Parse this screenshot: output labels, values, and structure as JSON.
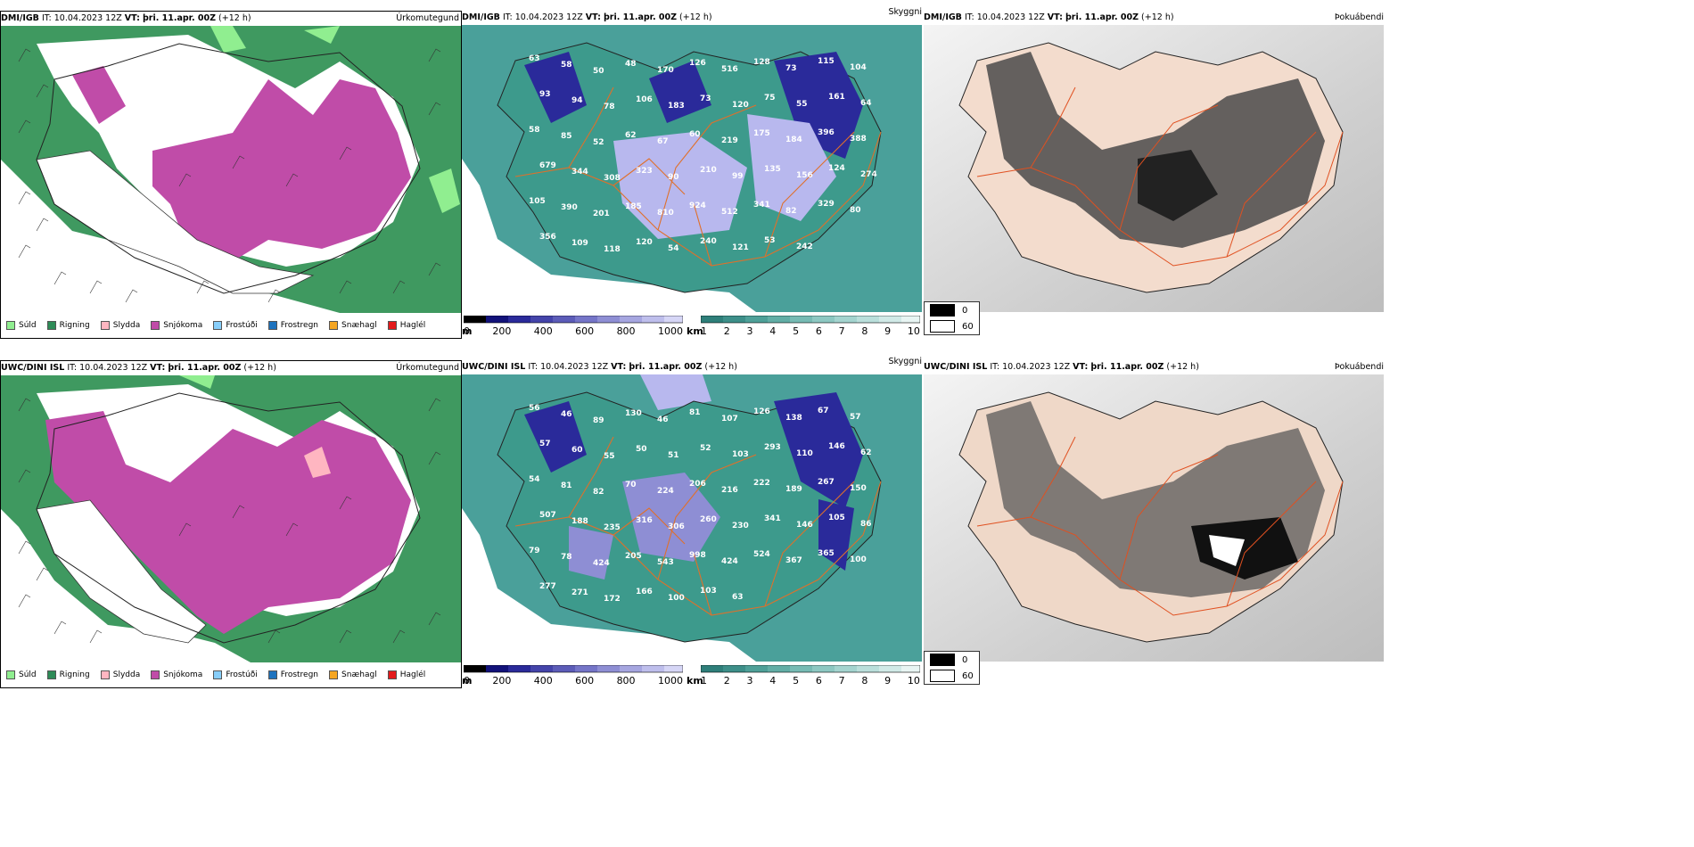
{
  "panels": [
    {
      "source": "DMI/IGB",
      "it_label": "IT:",
      "it": "10.04.2023 12Z",
      "vt_label": "VT:",
      "vt": "þri. 11.apr. 00Z",
      "lead": "(+12 h)",
      "field": "Úrkomutegund"
    },
    {
      "source": "DMI/IGB",
      "it_label": "IT:",
      "it": "10.04.2023 12Z",
      "vt_label": "VT:",
      "vt": "þri. 11.apr. 00Z",
      "lead": "(+12 h)",
      "field": "Skyggni"
    },
    {
      "source": "DMI/IGB",
      "it_label": "IT:",
      "it": "10.04.2023 12Z",
      "vt_label": "VT:",
      "vt": "þri. 11.apr. 00Z",
      "lead": "(+12 h)",
      "field": "Þokuábendi"
    },
    {
      "source": "UWC/DINI ISL",
      "it_label": "IT:",
      "it": "10.04.2023 12Z",
      "vt_label": "VT:",
      "vt": "þri. 11.apr. 00Z",
      "lead": "(+12 h)",
      "field": "Úrkomutegund"
    },
    {
      "source": "UWC/DINI ISL",
      "it_label": "IT:",
      "it": "10.04.2023 12Z",
      "vt_label": "VT:",
      "vt": "þri. 11.apr. 00Z",
      "lead": "(+12 h)",
      "field": "Skyggni"
    },
    {
      "source": "UWC/DINI ISL",
      "it_label": "IT:",
      "it": "10.04.2023 12Z",
      "vt_label": "VT:",
      "vt": "þri. 11.apr. 00Z",
      "lead": "(+12 h)",
      "field": "Þokuábendi"
    }
  ],
  "precip_legend": [
    {
      "label": "Súld",
      "color": "#90ee90"
    },
    {
      "label": "Rigning",
      "color": "#2e8b57"
    },
    {
      "label": "Slydda",
      "color": "#ffb6c1"
    },
    {
      "label": "Snjókoma",
      "color": "#c04ca8"
    },
    {
      "label": "Frostúði",
      "color": "#87cefa"
    },
    {
      "label": "Frostregn",
      "color": "#1e73be"
    },
    {
      "label": "Snæhagl",
      "color": "#f5a623"
    },
    {
      "label": "Haglél",
      "color": "#e31a1c"
    }
  ],
  "vis_scale_m": {
    "unit": "m",
    "ticks": [
      "0",
      "200",
      "400",
      "600",
      "800",
      "1000"
    ]
  },
  "vis_scale_km": {
    "unit": "km",
    "ticks": [
      "1",
      "2",
      "3",
      "4",
      "5",
      "6",
      "7",
      "8",
      "9",
      "10"
    ]
  },
  "fog_legend": {
    "black_label": "0",
    "white_label": "60"
  },
  "vis_labels_top": [
    "63",
    "58",
    "50",
    "48",
    "170",
    "126",
    "516",
    "128",
    "73",
    "115",
    "104",
    "93",
    "94",
    "78",
    "106",
    "183",
    "73",
    "120",
    "75",
    "55",
    "161",
    "64",
    "58",
    "85",
    "52",
    "62",
    "67",
    "60",
    "219",
    "175",
    "184",
    "396",
    "388",
    "679",
    "344",
    "308",
    "323",
    "90",
    "210",
    "99",
    "135",
    "156",
    "124",
    "274",
    "105",
    "390",
    "201",
    "185",
    "810",
    "924",
    "512",
    "341",
    "82",
    "329",
    "80",
    "356",
    "109",
    "118",
    "120",
    "54",
    "240",
    "121",
    "53",
    "242"
  ],
  "vis_labels_bottom": [
    "56",
    "46",
    "89",
    "130",
    "46",
    "81",
    "107",
    "126",
    "138",
    "67",
    "57",
    "57",
    "60",
    "55",
    "50",
    "51",
    "52",
    "103",
    "293",
    "110",
    "146",
    "62",
    "54",
    "81",
    "82",
    "70",
    "224",
    "206",
    "216",
    "222",
    "189",
    "267",
    "150",
    "507",
    "188",
    "235",
    "316",
    "306",
    "260",
    "230",
    "341",
    "146",
    "105",
    "86",
    "79",
    "78",
    "424",
    "205",
    "543",
    "998",
    "424",
    "524",
    "367",
    "365",
    "100",
    "277",
    "271",
    "172",
    "166",
    "100",
    "103",
    "63"
  ]
}
